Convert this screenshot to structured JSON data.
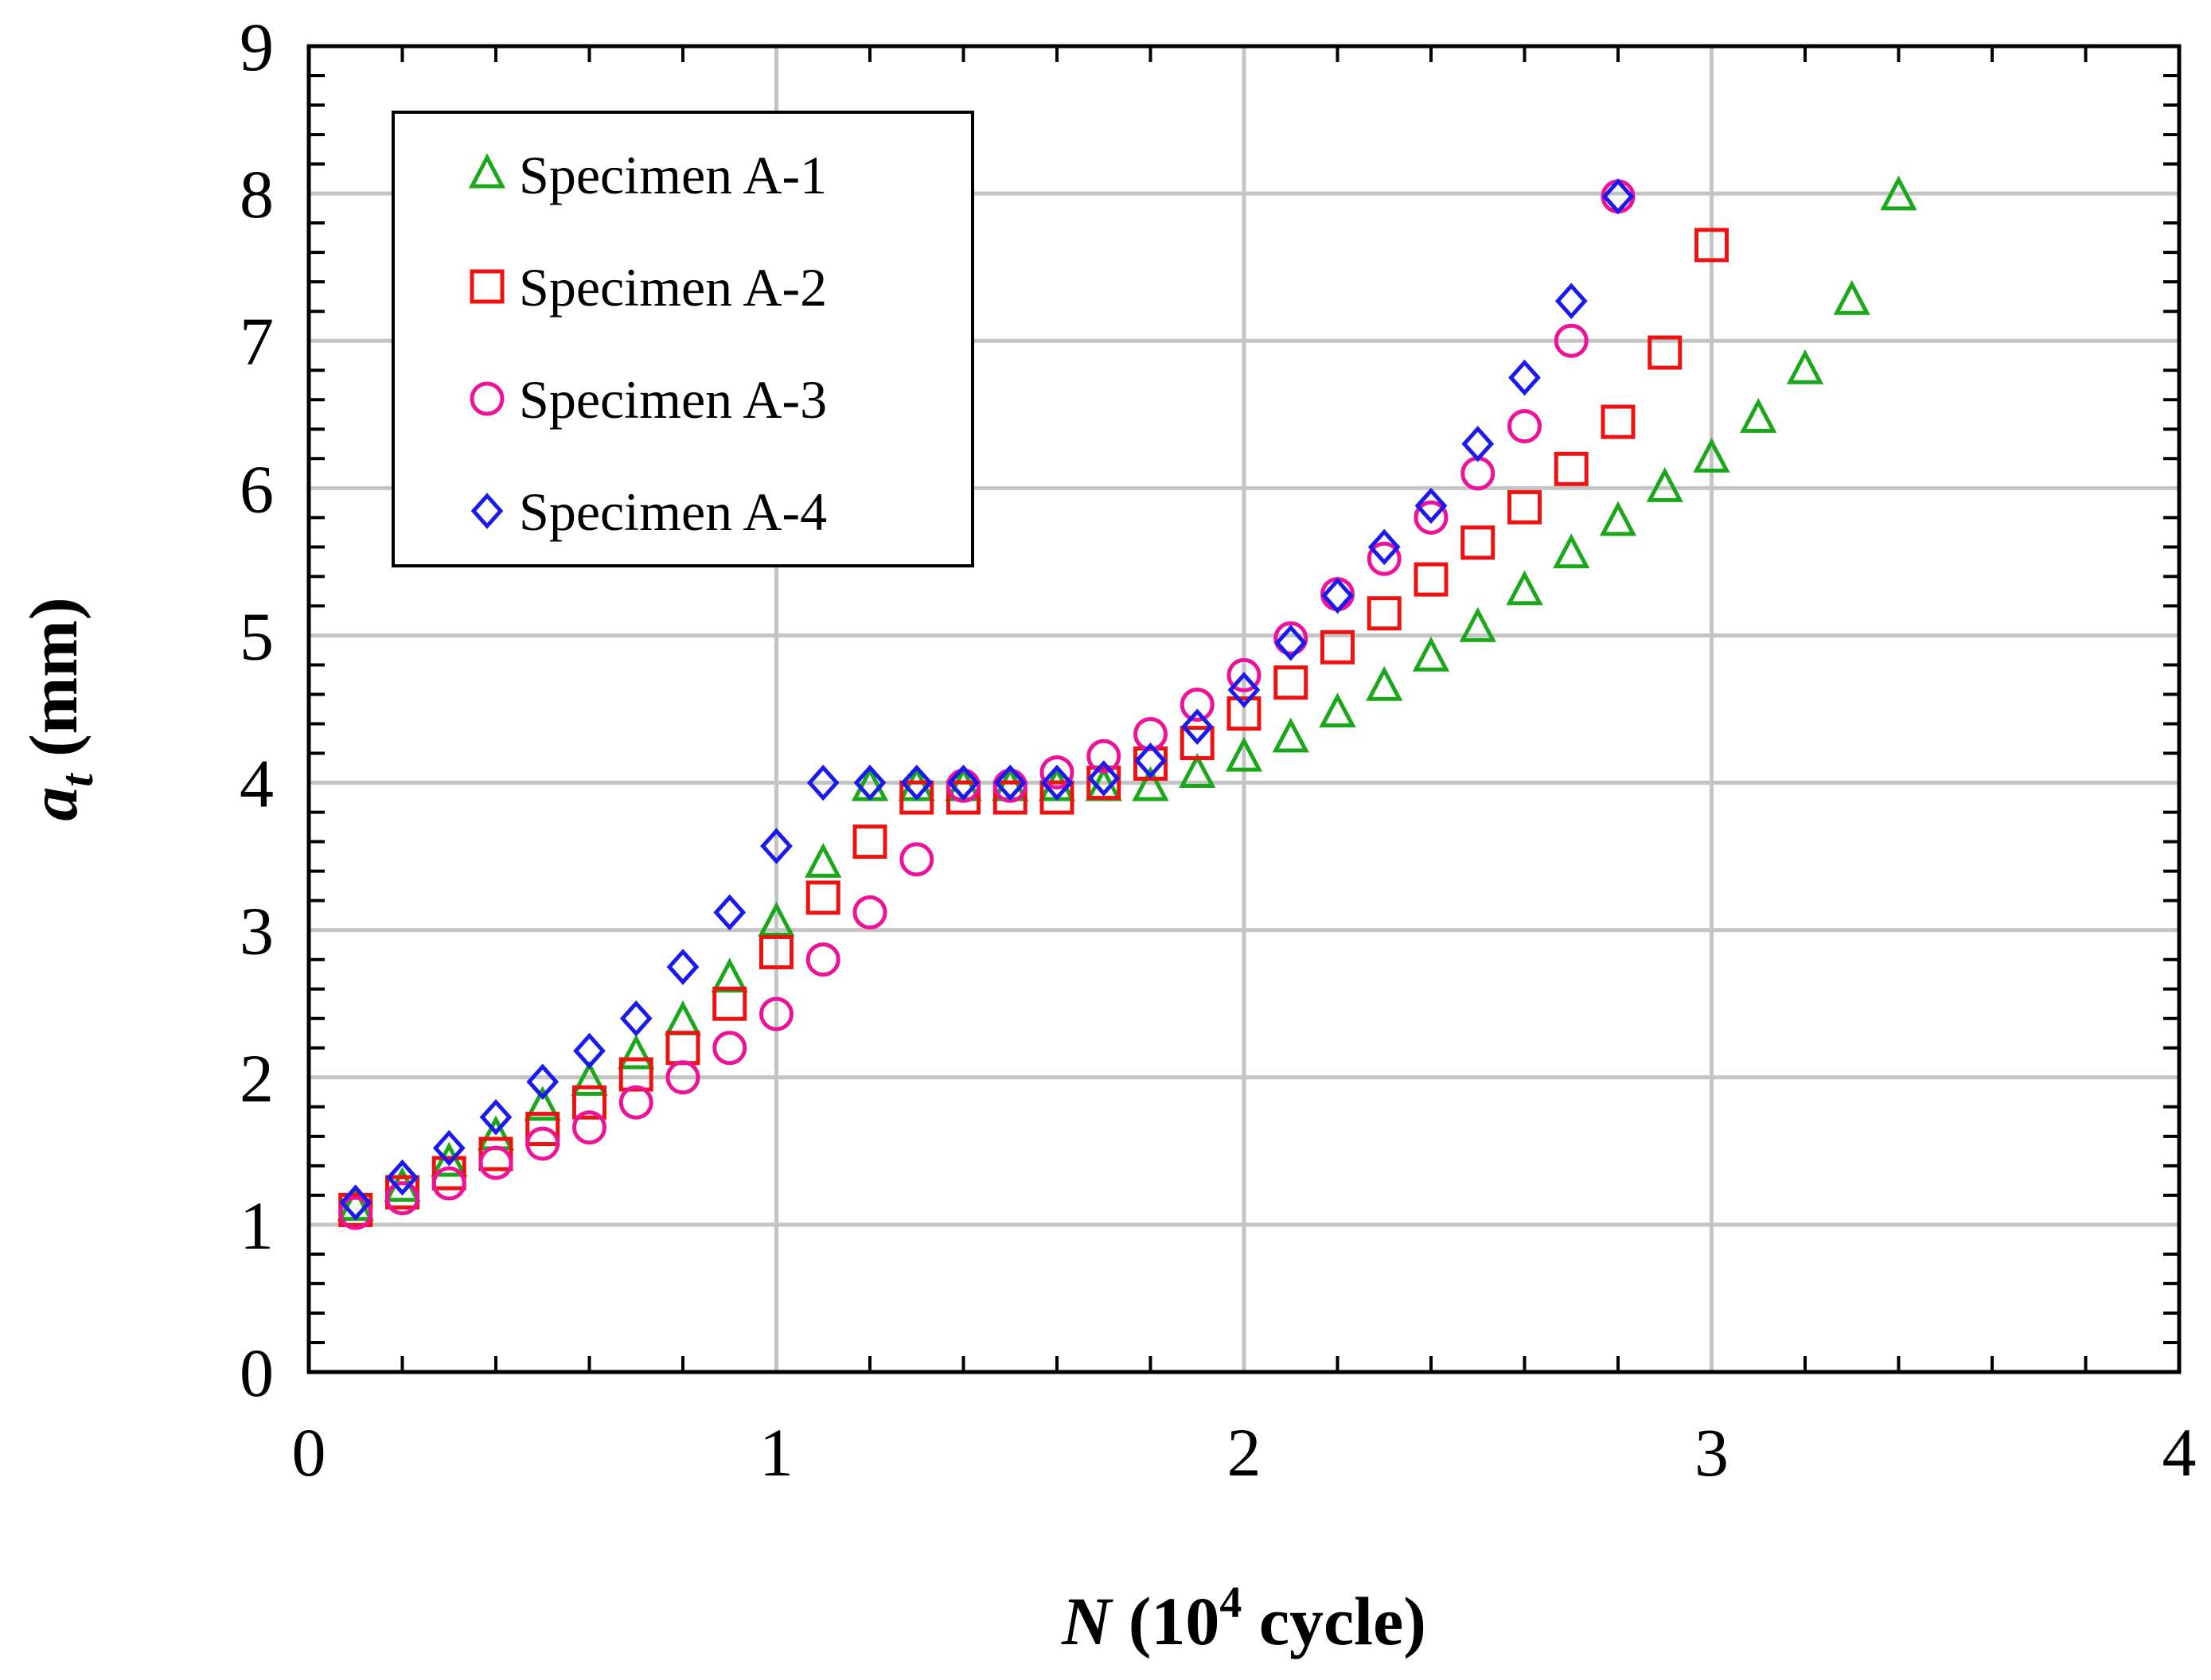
{
  "chart_data": {
    "type": "scatter",
    "xlabel": {
      "italic": "N",
      "pre": " (10",
      "sup": "4",
      "post": " cycle)"
    },
    "ylabel": {
      "main": "a",
      "sub": "t",
      "post": " (mm)"
    },
    "xlim": [
      0,
      4
    ],
    "ylim": [
      0,
      9
    ],
    "xticks": [
      "0",
      "1",
      "2",
      "3",
      "4"
    ],
    "yticks": [
      "0",
      "1",
      "2",
      "3",
      "4",
      "5",
      "6",
      "7",
      "8",
      "9"
    ],
    "grid": true,
    "legend_position": "top-left",
    "series": [
      {
        "name": "Specimen A-1",
        "marker": "triangle",
        "color": "#1aa81a",
        "x": [
          0.1,
          0.2,
          0.3,
          0.4,
          0.5,
          0.6,
          0.7,
          0.8,
          0.9,
          1.0,
          1.1,
          1.2,
          1.3,
          1.4,
          1.5,
          1.6,
          1.7,
          1.8,
          1.9,
          2.0,
          2.1,
          2.2,
          2.3,
          2.4,
          2.5,
          2.6,
          2.7,
          2.8,
          2.9,
          3.0,
          3.1,
          3.2,
          3.3,
          3.4
        ],
        "y": [
          1.12,
          1.25,
          1.42,
          1.6,
          1.8,
          1.97,
          2.15,
          2.38,
          2.67,
          3.05,
          3.45,
          3.97,
          3.97,
          3.97,
          3.97,
          3.97,
          3.97,
          3.97,
          4.06,
          4.17,
          4.3,
          4.47,
          4.65,
          4.85,
          5.05,
          5.3,
          5.55,
          5.77,
          6.0,
          6.2,
          6.47,
          6.8,
          7.27,
          7.98
        ]
      },
      {
        "name": "Specimen A-2",
        "marker": "square",
        "color": "#ee1111",
        "x": [
          0.1,
          0.2,
          0.3,
          0.4,
          0.5,
          0.6,
          0.7,
          0.8,
          0.9,
          1.0,
          1.1,
          1.2,
          1.3,
          1.4,
          1.5,
          1.6,
          1.7,
          1.8,
          1.9,
          2.0,
          2.1,
          2.2,
          2.3,
          2.4,
          2.5,
          2.6,
          2.7,
          2.8,
          2.9,
          3.0
        ],
        "y": [
          1.1,
          1.22,
          1.35,
          1.48,
          1.65,
          1.83,
          2.02,
          2.2,
          2.5,
          2.85,
          3.22,
          3.6,
          3.9,
          3.9,
          3.9,
          3.9,
          4.0,
          4.13,
          4.27,
          4.47,
          4.68,
          4.92,
          5.15,
          5.38,
          5.63,
          5.87,
          6.13,
          6.45,
          6.92,
          7.65
        ]
      },
      {
        "name": "Specimen A-3",
        "marker": "circle",
        "color": "#ee1199",
        "x": [
          0.1,
          0.2,
          0.3,
          0.4,
          0.5,
          0.6,
          0.7,
          0.8,
          0.9,
          1.0,
          1.1,
          1.2,
          1.3,
          1.4,
          1.5,
          1.6,
          1.7,
          1.8,
          1.9,
          2.0,
          2.1,
          2.2,
          2.3,
          2.4,
          2.5,
          2.6,
          2.7,
          2.8
        ],
        "y": [
          1.08,
          1.18,
          1.28,
          1.42,
          1.55,
          1.66,
          1.83,
          2.0,
          2.2,
          2.43,
          2.8,
          3.12,
          3.48,
          3.98,
          3.98,
          4.07,
          4.18,
          4.33,
          4.53,
          4.73,
          4.98,
          5.28,
          5.52,
          5.8,
          6.1,
          6.42,
          7.0,
          7.98
        ]
      },
      {
        "name": "Specimen A-4",
        "marker": "diamond",
        "color": "#1a1aee",
        "x": [
          0.1,
          0.2,
          0.3,
          0.4,
          0.5,
          0.6,
          0.7,
          0.8,
          0.9,
          1.0,
          1.1,
          1.2,
          1.3,
          1.4,
          1.5,
          1.6,
          1.7,
          1.8,
          1.9,
          2.0,
          2.1,
          2.2,
          2.3,
          2.4,
          2.5,
          2.6,
          2.7,
          2.8
        ],
        "y": [
          1.15,
          1.32,
          1.52,
          1.73,
          1.97,
          2.18,
          2.4,
          2.75,
          3.12,
          3.57,
          4.0,
          4.0,
          4.0,
          4.0,
          4.0,
          4.0,
          4.03,
          4.15,
          4.38,
          4.63,
          4.95,
          5.27,
          5.6,
          5.88,
          6.3,
          6.75,
          7.27,
          7.98
        ]
      }
    ]
  }
}
